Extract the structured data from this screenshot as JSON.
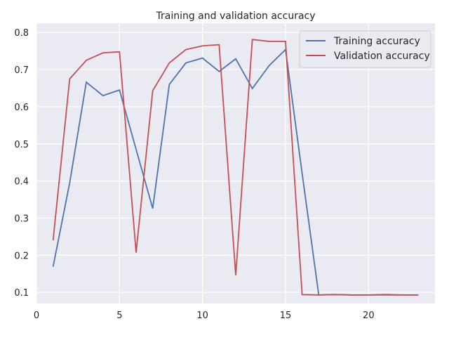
{
  "chart_data": {
    "type": "line",
    "title": "Training and validation accuracy",
    "xlabel": "",
    "ylabel": "",
    "xlim": [
      0,
      24
    ],
    "ylim": [
      0.07,
      0.825
    ],
    "xticks": [
      0,
      5,
      10,
      15,
      20
    ],
    "yticks": [
      0.1,
      0.2,
      0.3,
      0.4,
      0.5,
      0.6,
      0.7,
      0.8
    ],
    "grid": true,
    "legend_position": "top-right",
    "x": [
      1,
      2,
      3,
      4,
      5,
      6,
      7,
      8,
      9,
      10,
      11,
      12,
      13,
      14,
      15,
      16,
      17,
      18,
      19,
      20,
      21,
      22,
      23
    ],
    "series": [
      {
        "name": "Training accuracy",
        "color": "#4c72b0",
        "values": [
          0.169,
          0.395,
          0.666,
          0.63,
          0.645,
          0.485,
          0.326,
          0.66,
          0.718,
          0.731,
          0.695,
          0.729,
          0.649,
          0.71,
          0.754,
          0.42,
          0.093,
          0.094,
          0.093,
          0.093,
          0.093,
          0.093,
          0.093
        ]
      },
      {
        "name": "Validation accuracy",
        "color": "#c44e52",
        "values": [
          0.24,
          0.675,
          0.725,
          0.745,
          0.748,
          0.207,
          0.643,
          0.718,
          0.754,
          0.764,
          0.767,
          0.146,
          0.781,
          0.776,
          0.776,
          0.094,
          0.093,
          0.094,
          0.093,
          0.093,
          0.094,
          0.093,
          0.093
        ]
      }
    ]
  }
}
